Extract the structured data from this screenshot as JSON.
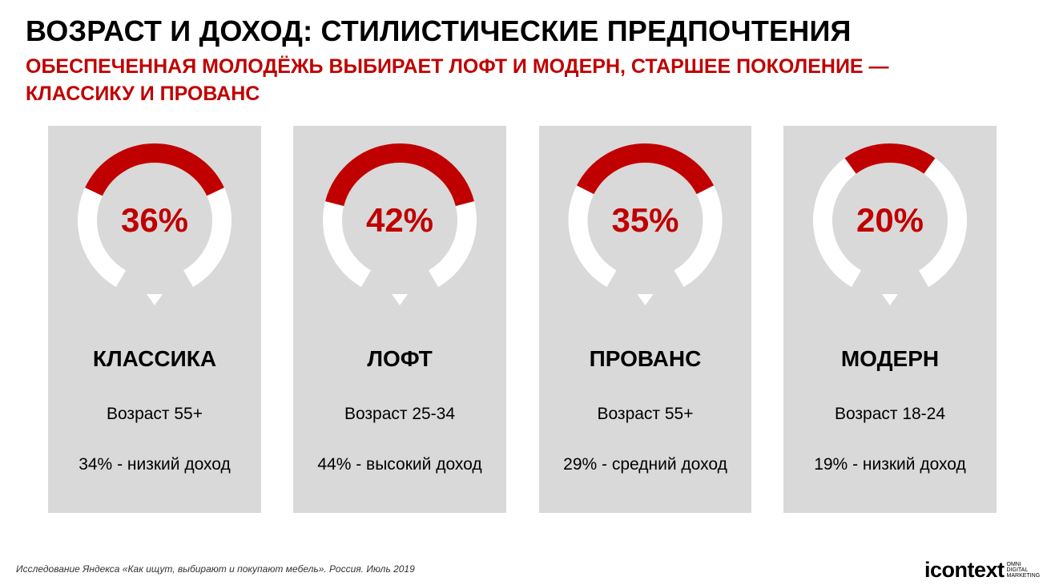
{
  "title": "ВОЗРАСТ И ДОХОД: СТИЛИСТИЧЕСКИЕ ПРЕДПОЧТЕНИЯ",
  "subtitle": "ОБЕСПЕЧЕННАЯ МОЛОДЁЖЬ ВЫБИРАЕТ ЛОФТ И МОДЕРН,  СТАРШЕЕ ПОКОЛЕНИЕ —\nКЛАССИКУ И ПРОВАНС",
  "colors": {
    "accent": "#c00000",
    "card_bg": "#d9d9d9",
    "ring_track": "#ffffff"
  },
  "chart_data": {
    "type": "donut",
    "categories": [
      "КЛАССИКА",
      "ЛОФТ",
      "ПРОВАНС",
      "МОДЕРН"
    ],
    "values": [
      36,
      42,
      35,
      20
    ],
    "value_labels": [
      "36%",
      "42%",
      "35%",
      "20%"
    ],
    "unit": "%"
  },
  "cards": [
    {
      "label": "КЛАССИКА",
      "value_label": "36%",
      "age": "Возраст 55+",
      "income": "34% - низкий доход"
    },
    {
      "label": "ЛОФТ",
      "value_label": "42%",
      "age": "Возраст 25-34",
      "income": "44% - высокий доход"
    },
    {
      "label": "ПРОВАНС",
      "value_label": "35%",
      "age": "Возраст 55+",
      "income": "29% - средний доход"
    },
    {
      "label": "МОДЕРН",
      "value_label": "20%",
      "age": "Возраст 18-24",
      "income": "19% - низкий доход"
    }
  ],
  "footnote": "Исследование Яндекса «Как ищут, выбирают и покупают мебель». Россия. Июль 2019",
  "logo": {
    "word": "icontext",
    "tagline": "OMNI\nDIGITAL\nMARKETING"
  }
}
